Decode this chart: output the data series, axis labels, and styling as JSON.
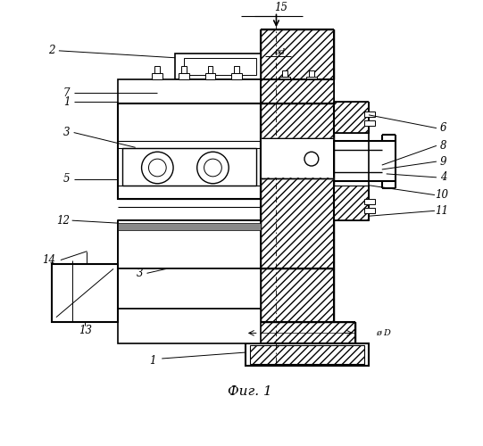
{
  "bg_color": "#ffffff",
  "lc": "#000000",
  "fig_w": 5.41,
  "fig_h": 5.0,
  "dpi": 100,
  "caption": "Фиг. 1",
  "label_fontsize": 8.5,
  "annot_fontsize": 7.5
}
